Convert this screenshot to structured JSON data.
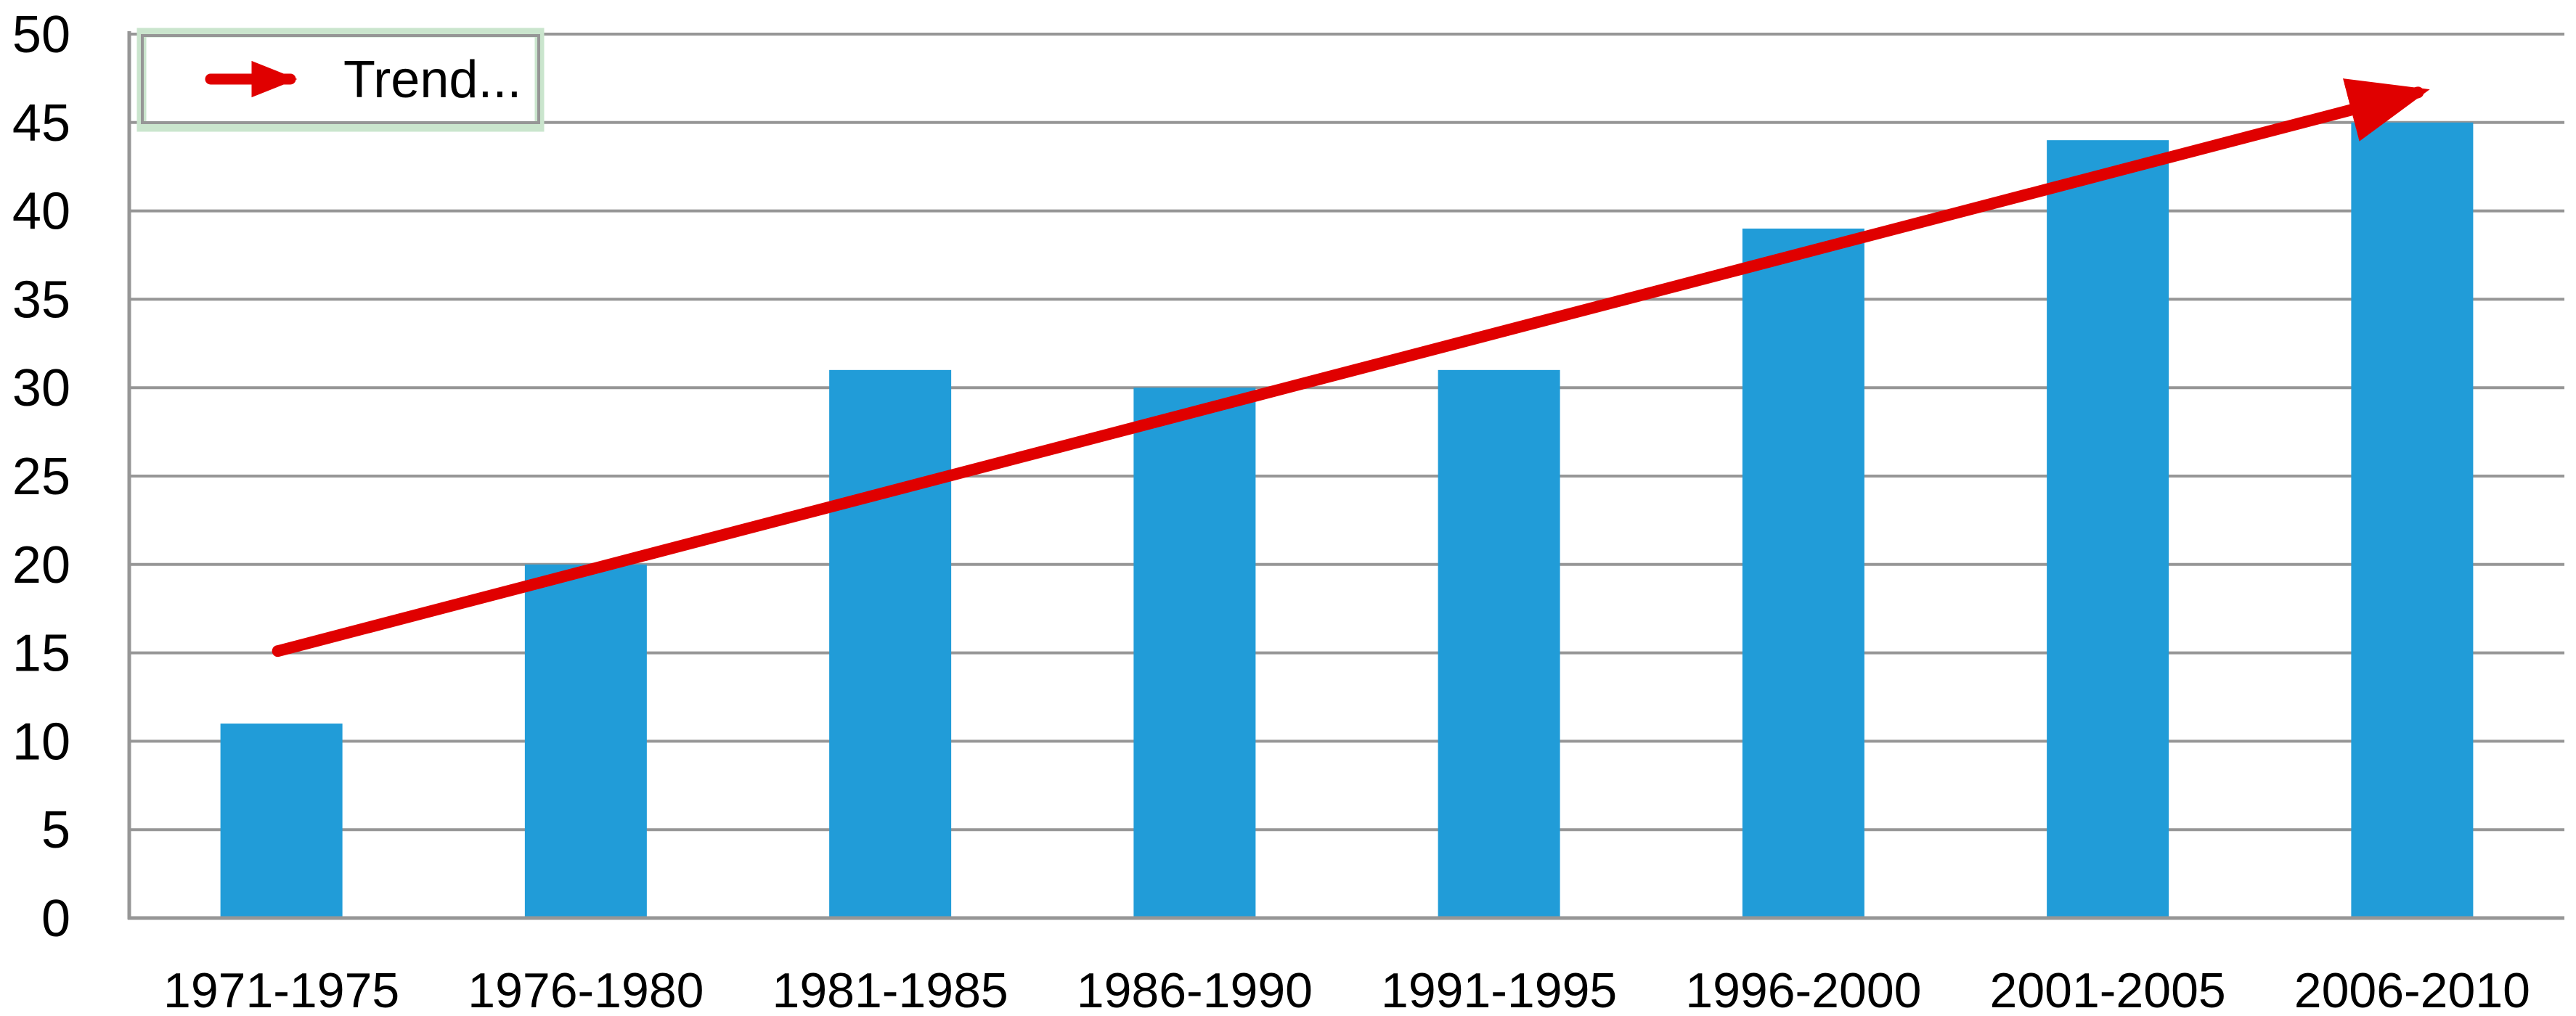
{
  "chart_data": {
    "type": "bar",
    "title": "",
    "xlabel": "",
    "ylabel": "",
    "categories": [
      "1971-1975",
      "1976-1980",
      "1981-1985",
      "1986-1990",
      "1991-1995",
      "1996-2000",
      "2001-2005",
      "2006-2010"
    ],
    "values": [
      11,
      20,
      31,
      30,
      31,
      39,
      44,
      45
    ],
    "ylim": [
      0,
      50
    ],
    "ytick_step": 5,
    "ytick_labels": [
      "0",
      "5",
      "10",
      "15",
      "20",
      "25",
      "30",
      "35",
      "40",
      "45",
      "50"
    ],
    "grid": true,
    "legend": {
      "label": "Trend...",
      "position": "top-left",
      "selected": true
    },
    "trend": {
      "name": "trend-arrow",
      "start_value": 15.1,
      "end_value": 46.7
    },
    "colors": {
      "bar": "#219CD8",
      "trend": "#E00000",
      "gridline": "#969696",
      "axis": "#969696",
      "legend_selection_border": "#CAE5CD",
      "legend_border": "#969696",
      "legend_fill": "#FFFFFF",
      "text": "#000000",
      "background": "#FFFFFF"
    }
  }
}
